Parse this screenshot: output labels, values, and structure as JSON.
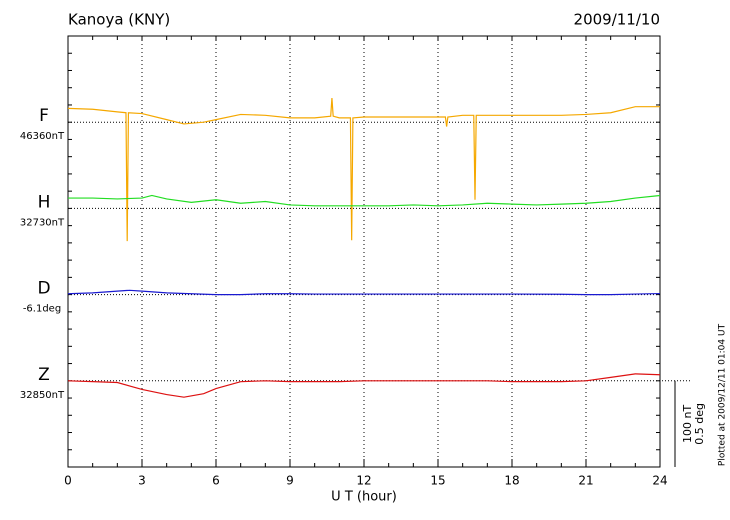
{
  "chart_data": {
    "type": "line",
    "title": "Kanoya (KNY)",
    "date": "2009/11/10",
    "xlabel": "U T (hour)",
    "xlim": [
      0,
      24
    ],
    "xticks": [
      0,
      3,
      6,
      9,
      12,
      15,
      18,
      21,
      24
    ],
    "grid": true,
    "scale_bar": [
      {
        "value": 100,
        "label": "100 nT"
      },
      {
        "value": 0.5,
        "label": "0.5 deg"
      }
    ],
    "footnote": "Plotted at 2009/12/11 01:04 UT",
    "series": [
      {
        "name": "F",
        "baseline_label": "46360nT",
        "color": "#f5a800",
        "x": [
          0,
          1,
          2,
          2.35,
          2.4,
          2.45,
          3,
          4,
          4.7,
          5.5,
          6,
          7,
          8,
          9,
          10,
          10.65,
          10.7,
          10.75,
          11,
          11.45,
          11.5,
          11.55,
          12,
          13,
          14,
          15,
          15.3,
          15.35,
          15.4,
          16,
          16.45,
          16.5,
          16.55,
          17,
          18,
          19,
          20,
          21,
          22,
          23,
          24
        ],
        "values": [
          16,
          15,
          12,
          11,
          -138,
          11,
          10,
          3,
          -2,
          0,
          3,
          9,
          8,
          5,
          5,
          7,
          28,
          7,
          5,
          5,
          -137,
          5,
          6,
          6,
          6,
          6,
          6,
          -5,
          6,
          8,
          8,
          -90,
          8,
          8,
          8,
          8,
          8,
          9,
          11,
          18,
          18
        ]
      },
      {
        "name": "H",
        "baseline_label": "32730nT",
        "color": "#22dd22",
        "x": [
          0,
          1,
          2,
          3,
          3.4,
          4,
          5,
          6,
          7,
          8,
          9,
          10,
          11,
          12,
          13,
          14,
          15,
          16,
          17,
          18,
          19,
          20,
          21,
          22,
          23,
          24
        ],
        "values": [
          12,
          12,
          11,
          12,
          15,
          11,
          7,
          10,
          6,
          8,
          4,
          3,
          3,
          3,
          3,
          4,
          3,
          4,
          6,
          5,
          4,
          5,
          6,
          8,
          12,
          15
        ]
      },
      {
        "name": "D",
        "baseline_label": "-6.1deg",
        "color": "#1a1ad0",
        "x": [
          0,
          1,
          2,
          2.5,
          3,
          4,
          5,
          6,
          7,
          8,
          9,
          10,
          12,
          14,
          16,
          18,
          20,
          21,
          22,
          23,
          24
        ],
        "values": [
          0.005,
          0.01,
          0.02,
          0.025,
          0.02,
          0.01,
          0.005,
          0,
          0,
          0.005,
          0.005,
          0.003,
          0.003,
          0.003,
          0.003,
          0.003,
          0.002,
          0,
          0,
          0.003,
          0.006
        ]
      },
      {
        "name": "Z",
        "baseline_label": "32850nT",
        "color": "#dd1111",
        "x": [
          0,
          1,
          2,
          3,
          4,
          4.7,
          5.5,
          6,
          7,
          8,
          9,
          10,
          11,
          12,
          13,
          14,
          15,
          16,
          17,
          18,
          19,
          20,
          21,
          22,
          23,
          24
        ],
        "values": [
          0,
          -1,
          -2,
          -10,
          -16,
          -19,
          -15,
          -9,
          -1,
          0,
          -1,
          -1,
          -1,
          0,
          0,
          0,
          0,
          0,
          0,
          -1,
          -1,
          -1,
          0,
          4,
          8,
          7
        ]
      }
    ]
  }
}
